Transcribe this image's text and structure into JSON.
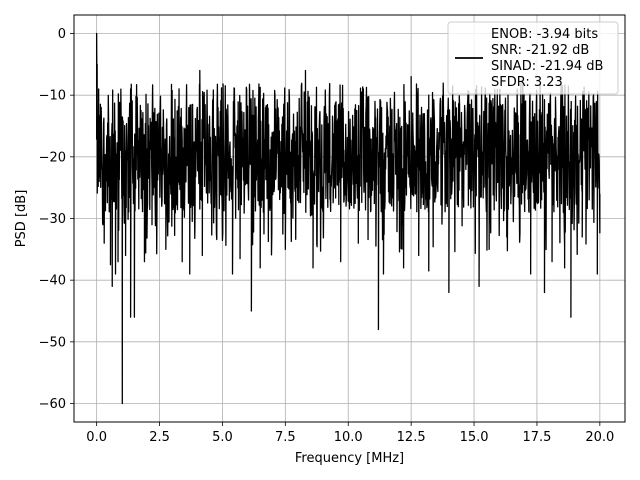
{
  "chart_data": {
    "type": "line",
    "title": "",
    "xlabel": "Frequency [MHz]",
    "ylabel": "PSD [dB]",
    "xlim": [
      -0.9,
      21.0
    ],
    "ylim": [
      -63,
      3
    ],
    "grid": true,
    "x_ticks": [
      0.0,
      2.5,
      5.0,
      7.5,
      10.0,
      12.5,
      15.0,
      17.5,
      20.0
    ],
    "x_tick_labels": [
      "0.0",
      "2.5",
      "5.0",
      "7.5",
      "10.0",
      "12.5",
      "15.0",
      "17.5",
      "20.0"
    ],
    "y_ticks": [
      0,
      -10,
      -20,
      -30,
      -40,
      -50,
      -60
    ],
    "y_tick_labels": [
      "0",
      "−10",
      "−20",
      "−30",
      "−40",
      "−50",
      "−60"
    ],
    "line_color": "#000000",
    "legend_position": "top-right",
    "legend": [
      "ENOB: -3.94 bits",
      "SNR: -21.92 dB",
      "SINAD: -21.94 dB",
      "SFDR: 3.23"
    ],
    "series": [
      {
        "x_range": [
          0.0,
          20.0
        ],
        "noise_band_db": [
          -29,
          -11
        ],
        "points": [
          [
            0.0,
            0.0
          ],
          [
            0.02,
            -5
          ],
          [
            0.05,
            -14
          ],
          [
            0.08,
            -9
          ],
          [
            0.12,
            -19
          ],
          [
            0.18,
            -12
          ],
          [
            0.3,
            -34
          ],
          [
            0.55,
            -37.5
          ],
          [
            0.62,
            -41
          ],
          [
            0.75,
            -39
          ],
          [
            0.85,
            -37
          ],
          [
            1.02,
            -60
          ],
          [
            1.15,
            -36
          ],
          [
            1.35,
            -46
          ],
          [
            1.5,
            -46
          ],
          [
            1.9,
            -37
          ],
          [
            2.2,
            -31
          ],
          [
            2.75,
            -35
          ],
          [
            3.4,
            -37
          ],
          [
            3.7,
            -39
          ],
          [
            4.2,
            -36
          ],
          [
            4.1,
            -6
          ],
          [
            5.4,
            -39
          ],
          [
            5.7,
            -36.5
          ],
          [
            6.15,
            -45
          ],
          [
            6.5,
            -38
          ],
          [
            7.5,
            -35
          ],
          [
            8.3,
            -6
          ],
          [
            8.6,
            -38
          ],
          [
            9.7,
            -37
          ],
          [
            10.4,
            -34
          ],
          [
            11.2,
            -48
          ],
          [
            11.4,
            -39
          ],
          [
            12.2,
            -38
          ],
          [
            12.5,
            -7
          ],
          [
            12.8,
            -36
          ],
          [
            13.2,
            -38.5
          ],
          [
            14.0,
            -42
          ],
          [
            15.2,
            -41
          ],
          [
            15.6,
            -35
          ],
          [
            16.3,
            -33
          ],
          [
            17.25,
            -39
          ],
          [
            17.8,
            -42
          ],
          [
            18.1,
            -37
          ],
          [
            18.6,
            -38
          ],
          [
            18.85,
            -46
          ],
          [
            19.3,
            -33
          ],
          [
            19.9,
            -39
          ],
          [
            20.0,
            -26
          ]
        ]
      }
    ]
  }
}
